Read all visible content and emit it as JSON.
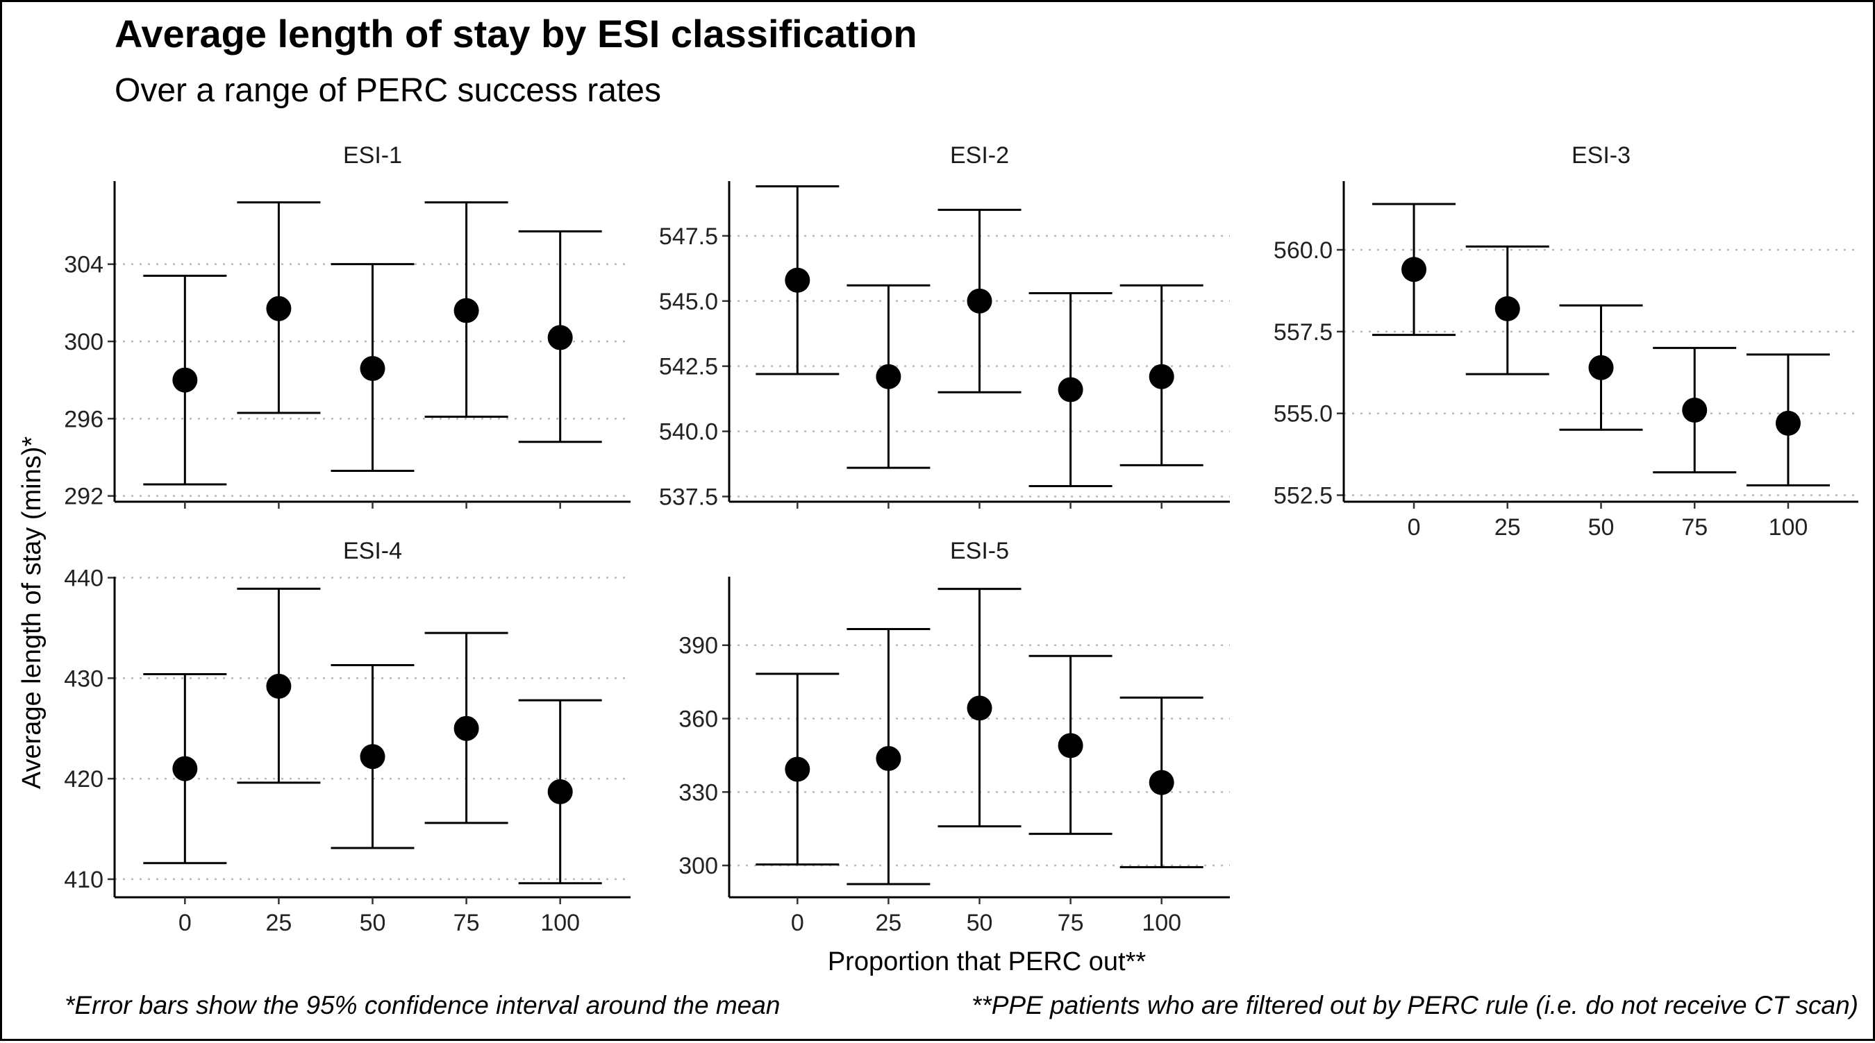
{
  "chart_data": {
    "type": "scatter",
    "title": "Average length of stay by ESI classification",
    "subtitle": "Over a range of PERC success rates",
    "xlabel": "Proportion that PERC out**",
    "ylabel": "Average length of stay (mins)*",
    "caption_left": "*Error bars show the 95% confidence interval around the mean",
    "caption_right": "**PPE patients who are filtered out by PERC rule (i.e. do not receive CT scan)",
    "grid": "horizontal dotted",
    "x": [
      0,
      25,
      50,
      75,
      100
    ],
    "x_tick_labels": [
      "0",
      "25",
      "50",
      "75",
      "100"
    ],
    "panels": [
      {
        "name": "ESI-1",
        "ylim": [
          291.7,
          308.3
        ],
        "yticks": [
          292,
          296,
          300,
          304
        ],
        "ytick_labels": [
          "292",
          "296",
          "300",
          "304"
        ],
        "mean": [
          298.0,
          301.7,
          298.6,
          301.6,
          300.2
        ],
        "lower": [
          292.6,
          296.3,
          293.3,
          296.1,
          294.8
        ],
        "upper": [
          303.4,
          307.2,
          304.0,
          307.2,
          305.7
        ]
      },
      {
        "name": "ESI-2",
        "ylim": [
          537.3,
          549.6
        ],
        "yticks": [
          537.5,
          540.0,
          542.5,
          545.0,
          547.5
        ],
        "ytick_labels": [
          "537.5",
          "540.0",
          "542.5",
          "545.0",
          "547.5"
        ],
        "mean": [
          545.8,
          542.1,
          545.0,
          541.6,
          542.1
        ],
        "lower": [
          542.2,
          538.6,
          541.5,
          537.9,
          538.7
        ],
        "upper": [
          549.4,
          545.6,
          548.5,
          545.3,
          545.6
        ]
      },
      {
        "name": "ESI-3",
        "ylim": [
          552.3,
          562.1
        ],
        "yticks": [
          552.5,
          555.0,
          557.5,
          560.0
        ],
        "ytick_labels": [
          "552.5",
          "555.0",
          "557.5",
          "560.0"
        ],
        "mean": [
          559.4,
          558.2,
          556.4,
          555.1,
          554.7
        ],
        "lower": [
          557.4,
          556.2,
          554.5,
          553.2,
          552.8
        ],
        "upper": [
          561.4,
          560.1,
          558.3,
          557.0,
          556.8
        ]
      },
      {
        "name": "ESI-4",
        "ylim": [
          408.2,
          440.1
        ],
        "yticks": [
          410,
          420,
          430,
          440
        ],
        "ytick_labels": [
          "410",
          "420",
          "430",
          "440"
        ],
        "mean": [
          421.0,
          429.2,
          422.2,
          425.0,
          418.7
        ],
        "lower": [
          411.6,
          419.6,
          413.1,
          415.6,
          409.6
        ],
        "upper": [
          430.4,
          438.9,
          431.3,
          434.5,
          427.8
        ]
      },
      {
        "name": "ESI-5",
        "ylim": [
          287,
          418
        ],
        "yticks": [
          300,
          330,
          360,
          390
        ],
        "ytick_labels": [
          "300",
          "330",
          "360",
          "390"
        ],
        "mean": [
          339.3,
          343.7,
          364.3,
          349.0,
          333.9
        ],
        "lower": [
          300.4,
          292.4,
          316.0,
          312.9,
          299.3
        ],
        "upper": [
          378.3,
          396.6,
          413.0,
          385.6,
          368.6
        ]
      }
    ]
  }
}
